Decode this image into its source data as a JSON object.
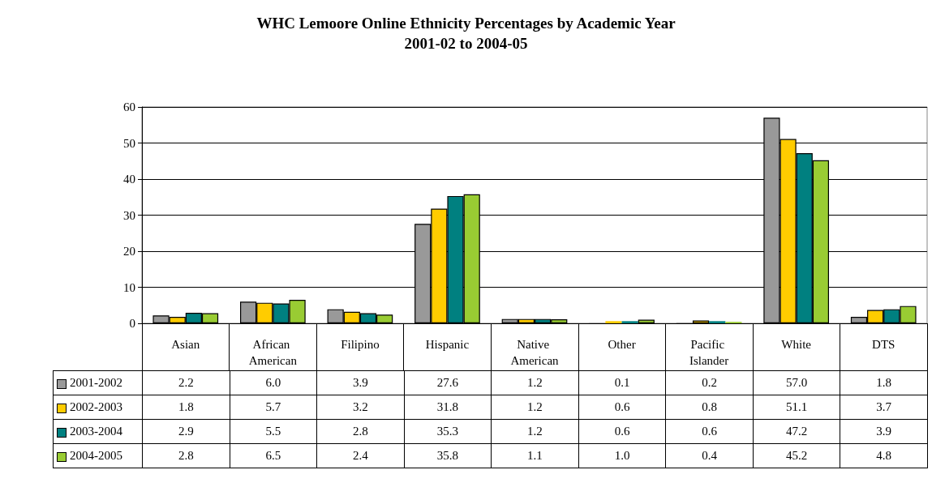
{
  "chart_data": {
    "type": "bar",
    "title": "WHC Lemoore Online Ethnicity Percentages by Academic Year",
    "subtitle": "2001-02 to 2004-05",
    "categories": [
      "Asian",
      "African American",
      "Filipino",
      "Hispanic",
      "Native American",
      "Other",
      "Pacific Islander",
      "White",
      "DTS"
    ],
    "series": [
      {
        "name": "2001-2002",
        "color": "#999999",
        "values": [
          2.2,
          6.0,
          3.9,
          27.6,
          1.2,
          0.1,
          0.2,
          57.0,
          1.8
        ],
        "value_labels": [
          "2.2",
          "6.0",
          "3.9",
          "27.6",
          "1.2",
          "0.1",
          "0.2",
          "57.0",
          "1.8"
        ]
      },
      {
        "name": "2002-2003",
        "color": "#ffcc00",
        "values": [
          1.8,
          5.7,
          3.2,
          31.8,
          1.2,
          0.6,
          0.8,
          51.1,
          3.7
        ],
        "value_labels": [
          "1.8",
          "5.7",
          "3.2",
          "31.8",
          "1.2",
          "0.6",
          "0.8",
          "51.1",
          "3.7"
        ]
      },
      {
        "name": "2003-2004",
        "color": "#008080",
        "values": [
          2.9,
          5.5,
          2.8,
          35.3,
          1.2,
          0.6,
          0.6,
          47.2,
          3.9
        ],
        "value_labels": [
          "2.9",
          "5.5",
          "2.8",
          "35.3",
          "1.2",
          "0.6",
          "0.6",
          "47.2",
          "3.9"
        ]
      },
      {
        "name": "2004-2005",
        "color": "#99cc33",
        "values": [
          2.8,
          6.5,
          2.4,
          35.8,
          1.1,
          1.0,
          0.4,
          45.2,
          4.8
        ],
        "value_labels": [
          "2.8",
          "6.5",
          "2.4",
          "35.8",
          "1.1",
          "1.0",
          "0.4",
          "45.2",
          "4.8"
        ]
      }
    ],
    "ylim": [
      0,
      60
    ],
    "yticks": [
      0,
      10,
      20,
      30,
      40,
      50,
      60
    ],
    "grid": "y",
    "legend": "bottom left"
  }
}
